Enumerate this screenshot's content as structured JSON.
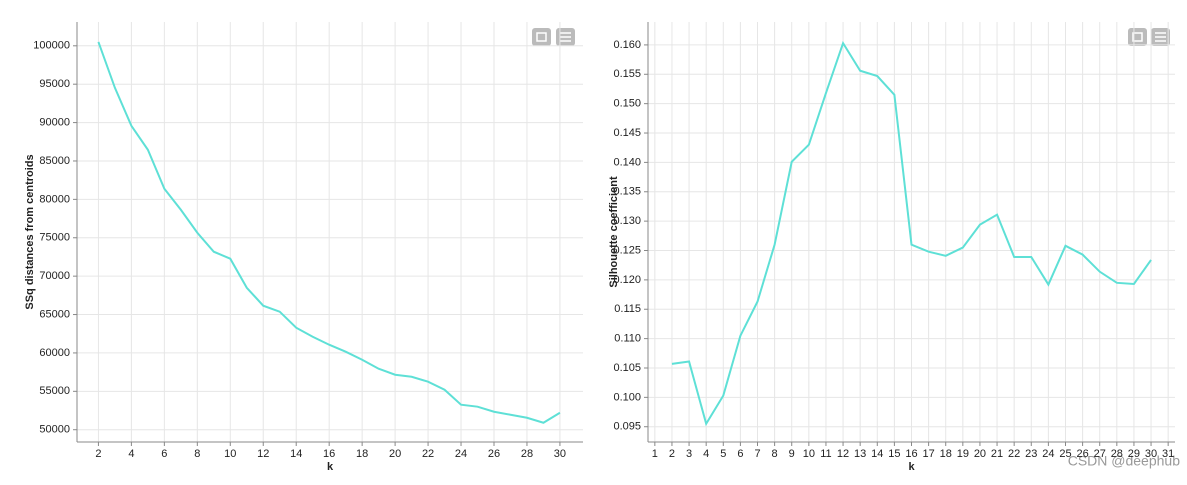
{
  "chart_data": [
    {
      "type": "line",
      "x_label": "k",
      "y_label": "SSq distances from centroids",
      "color": "#5ee0d6",
      "grid": true,
      "x": [
        2,
        3,
        4,
        5,
        6,
        7,
        8,
        9,
        10,
        11,
        12,
        13,
        14,
        15,
        16,
        17,
        18,
        19,
        20,
        21,
        22,
        23,
        24,
        25,
        26,
        27,
        28,
        29,
        30
      ],
      "values": [
        100500,
        94530,
        89580,
        86460,
        81380,
        78650,
        75650,
        73180,
        72270,
        68490,
        66150,
        65370,
        63280,
        62110,
        61070,
        60160,
        59110,
        57940,
        57160,
        56900,
        56250,
        55210,
        53260,
        53000,
        52340,
        51950,
        51560,
        50910,
        52210
      ],
      "xlim": [
        0.7,
        31.4
      ],
      "xticks": [
        2,
        4,
        6,
        8,
        10,
        12,
        14,
        16,
        18,
        20,
        22,
        24,
        26,
        28,
        30
      ],
      "ylim": [
        48400,
        103100
      ],
      "yticks": [
        50000,
        55000,
        60000,
        65000,
        70000,
        75000,
        80000,
        85000,
        90000,
        95000,
        100000
      ]
    },
    {
      "type": "line",
      "x_label": "k",
      "y_label": "Silhouette coefficient",
      "color": "#5ee0d6",
      "grid": true,
      "x": [
        2,
        3,
        4,
        5,
        6,
        7,
        8,
        9,
        10,
        11,
        12,
        13,
        14,
        15,
        16,
        17,
        18,
        19,
        20,
        21,
        22,
        23,
        24,
        25,
        26,
        27,
        28,
        29,
        30
      ],
      "values": [
        0.1057,
        0.1061,
        0.0955,
        0.1003,
        0.1105,
        0.1163,
        0.126,
        0.1401,
        0.143,
        0.1518,
        0.1603,
        0.1556,
        0.1547,
        0.1515,
        0.126,
        0.1248,
        0.1241,
        0.1255,
        0.1294,
        0.1311,
        0.1239,
        0.1239,
        0.1192,
        0.1258,
        0.1243,
        0.1214,
        0.1195,
        0.1193,
        0.1234
      ],
      "xlim": [
        0.6,
        31.4
      ],
      "xticks": [
        1,
        2,
        3,
        4,
        5,
        6,
        7,
        8,
        9,
        10,
        11,
        12,
        13,
        14,
        15,
        16,
        17,
        18,
        19,
        20,
        21,
        22,
        23,
        24,
        25,
        26,
        27,
        28,
        29,
        30,
        31
      ],
      "ylim": [
        0.0924,
        0.1639
      ],
      "yticks": [
        0.095,
        {
          "value": 0.1,
          "label": "0.100"
        },
        0.105,
        {
          "value": 0.11,
          "label": "0.110"
        },
        0.115,
        {
          "value": 0.12,
          "label": "0.120"
        },
        0.125,
        {
          "value": 0.13,
          "label": "0.130"
        },
        0.135,
        {
          "value": 0.14,
          "label": "0.140"
        },
        0.145,
        {
          "value": 0.15,
          "label": "0.150"
        },
        0.155,
        {
          "value": 0.16,
          "label": "0.160"
        }
      ]
    }
  ],
  "watermark": "CSDN @deephub"
}
